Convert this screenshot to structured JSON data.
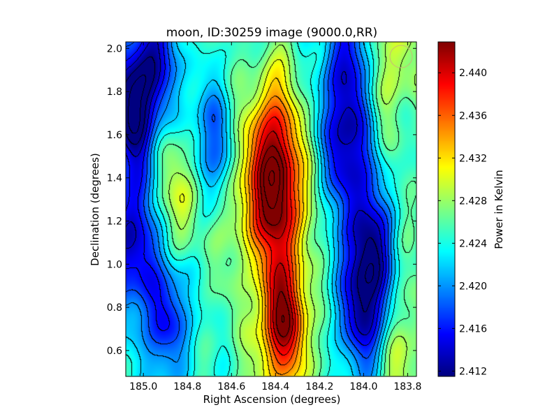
{
  "chart_data": {
    "type": "heatmap",
    "title": "moon, ID:30259 image (9000.0,RR)",
    "xlabel": "Right Ascension (degrees)",
    "ylabel": "Declination (degrees)",
    "colorbar_label": "Power in Kelvin",
    "colormap": "jet",
    "contours": true,
    "x_reversed": true,
    "xlim": [
      185.08,
      183.76
    ],
    "ylim": [
      0.48,
      2.03
    ],
    "clim": [
      2.4115,
      2.4429
    ],
    "x_ticks": [
      {
        "value": 185.0,
        "label": "185.0"
      },
      {
        "value": 184.8,
        "label": "184.8"
      },
      {
        "value": 184.6,
        "label": "184.6"
      },
      {
        "value": 184.4,
        "label": "184.4"
      },
      {
        "value": 184.2,
        "label": "184.2"
      },
      {
        "value": 184.0,
        "label": "184.0"
      },
      {
        "value": 183.8,
        "label": "183.8"
      }
    ],
    "y_ticks": [
      {
        "value": 0.6,
        "label": "0.6"
      },
      {
        "value": 0.8,
        "label": "0.8"
      },
      {
        "value": 1.0,
        "label": "1.0"
      },
      {
        "value": 1.2,
        "label": "1.2"
      },
      {
        "value": 1.4,
        "label": "1.4"
      },
      {
        "value": 1.6,
        "label": "1.6"
      },
      {
        "value": 1.8,
        "label": "1.8"
      },
      {
        "value": 2.0,
        "label": "2.0"
      }
    ],
    "colorbar_ticks": [
      {
        "value": 2.412,
        "label": "2.412"
      },
      {
        "value": 2.416,
        "label": "2.416"
      },
      {
        "value": 2.42,
        "label": "2.420"
      },
      {
        "value": 2.424,
        "label": "2.424"
      },
      {
        "value": 2.428,
        "label": "2.428"
      },
      {
        "value": 2.432,
        "label": "2.432"
      },
      {
        "value": 2.436,
        "label": "2.436"
      },
      {
        "value": 2.44,
        "label": "2.440"
      }
    ],
    "features": [
      {
        "ra": 184.38,
        "dec": 1.3,
        "value": 2.4405
      },
      {
        "ra": 184.37,
        "dec": 0.73,
        "value": 2.4425
      },
      {
        "ra": 184.42,
        "dec": 1.6,
        "value": 2.436
      },
      {
        "ra": 184.53,
        "dec": 1.25,
        "value": 2.431
      },
      {
        "ra": 184.82,
        "dec": 1.35,
        "value": 2.431
      },
      {
        "ra": 183.86,
        "dec": 1.95,
        "value": 2.43
      },
      {
        "ra": 183.82,
        "dec": 0.58,
        "value": 2.43
      },
      {
        "ra": 185.06,
        "dec": 1.72,
        "value": 2.4115
      },
      {
        "ra": 185.06,
        "dec": 1.1,
        "value": 2.413
      },
      {
        "ra": 184.08,
        "dec": 1.55,
        "value": 2.414
      },
      {
        "ra": 184.0,
        "dec": 0.78,
        "value": 2.414
      },
      {
        "ra": 183.98,
        "dec": 1.1,
        "value": 2.4145
      },
      {
        "ra": 184.08,
        "dec": 1.98,
        "value": 2.4165
      },
      {
        "ra": 184.95,
        "dec": 1.95,
        "value": 2.415
      },
      {
        "ra": 184.9,
        "dec": 0.75,
        "value": 2.4155
      },
      {
        "ra": 184.7,
        "dec": 1.55,
        "value": 2.4175
      }
    ]
  }
}
